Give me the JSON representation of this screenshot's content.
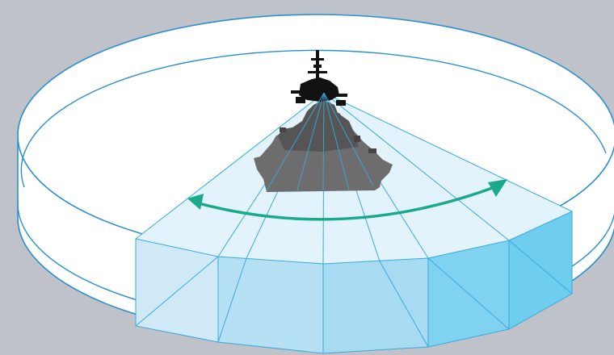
{
  "diagram": {
    "subject": "ship",
    "sector_beam_count": 9,
    "sweep_arrow": "double-headed",
    "colors": {
      "background": "#bfc3c9",
      "cylinder_outline": "#2a8fd0",
      "cylinder_fill": "#ffffff",
      "beam_line": "#39a9df",
      "sector_top_fill": "#e3f3fb",
      "wall_light": "#cfe9f7",
      "wall_mid": "#a7dbf2",
      "wall_dark": "#6fcdee",
      "sweep_arrow": "#1aa98a",
      "ship_hull": "#6d6d6d",
      "ship_superstructure": "#111111"
    }
  }
}
